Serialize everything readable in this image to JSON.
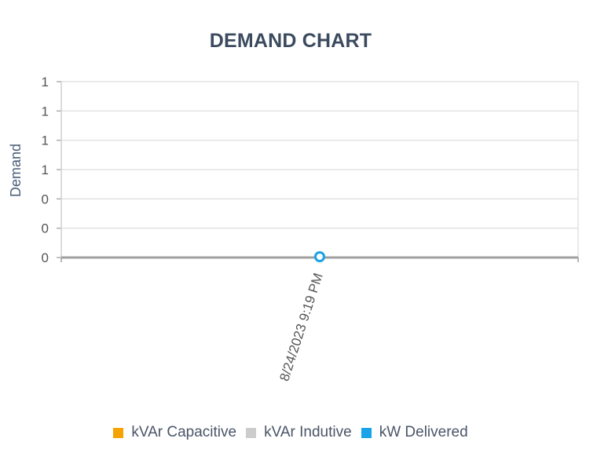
{
  "chart_data": {
    "type": "line",
    "title": "DEMAND CHART",
    "xlabel": "",
    "ylabel": "Demand",
    "categories": [
      "8/24/2023 9:19 PM"
    ],
    "y_tick_labels": [
      "0",
      "0",
      "0",
      "1",
      "1",
      "1",
      "1"
    ],
    "grid": true,
    "legend_position": "bottom",
    "series": [
      {
        "name": "kVAr Capacitive",
        "color": "#f5a300",
        "values": [
          0
        ]
      },
      {
        "name": "kVAr Indutive",
        "color": "#cccccc",
        "values": [
          0
        ]
      },
      {
        "name": "kW Delivered",
        "color": "#1aa3e8",
        "values": [
          0
        ]
      }
    ]
  }
}
